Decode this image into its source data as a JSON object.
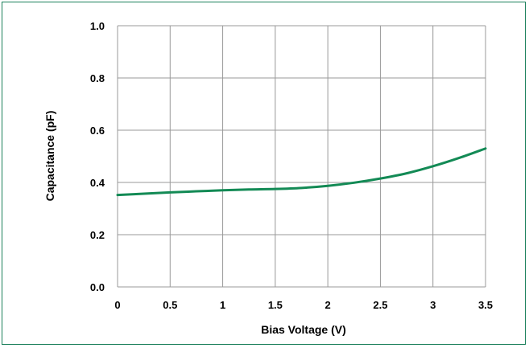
{
  "chart_data": {
    "type": "line",
    "title": "",
    "xlabel": "Bias Voltage (V)",
    "ylabel": "Capacitance (pF)",
    "xlim": [
      0,
      3.5
    ],
    "ylim": [
      0.0,
      1.0
    ],
    "x_ticks": [
      "0",
      "0.5",
      "1",
      "1.5",
      "2",
      "2.5",
      "3",
      "3.5"
    ],
    "y_ticks": [
      "0.0",
      "0.2",
      "0.4",
      "0.6",
      "0.8",
      "1.0"
    ],
    "grid": true,
    "legend": "none",
    "series": [
      {
        "color": "#138a55",
        "x": [
          0,
          0.25,
          0.5,
          0.75,
          1.0,
          1.25,
          1.5,
          1.75,
          2.0,
          2.25,
          2.5,
          2.75,
          3.0,
          3.25,
          3.5
        ],
        "y": [
          0.352,
          0.357,
          0.362,
          0.366,
          0.37,
          0.373,
          0.375,
          0.379,
          0.387,
          0.399,
          0.415,
          0.435,
          0.462,
          0.494,
          0.53
        ]
      }
    ]
  }
}
